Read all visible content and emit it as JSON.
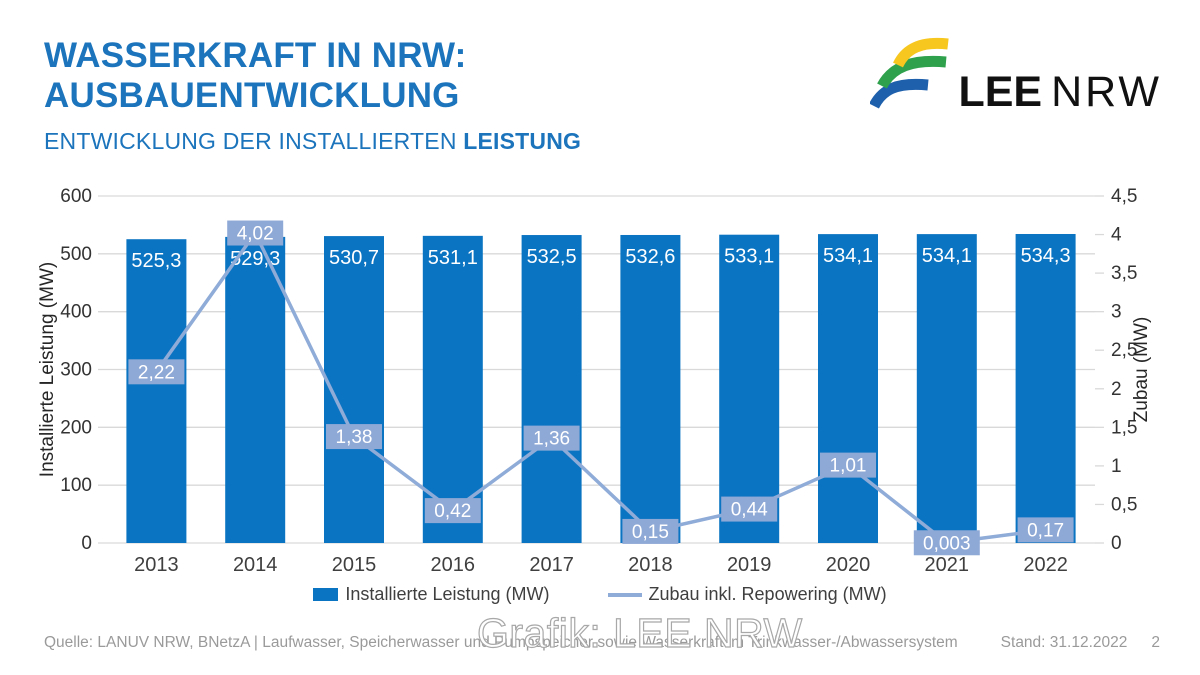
{
  "header": {
    "title_line1": "WASSERKRAFT IN NRW:",
    "title_line2": "AUSBAUENTWICKLUNG",
    "subtitle_prefix": "ENTWICKLUNG DER INSTALLIERTEN ",
    "subtitle_bold": "LEISTUNG"
  },
  "logo": {
    "bold": "LEE",
    "light": "NRW",
    "colors": {
      "yellow": "#f7c71f",
      "green": "#2fa14d",
      "blue": "#1f60ac"
    }
  },
  "chart_data": {
    "type": "bar+line",
    "categories": [
      "2013",
      "2014",
      "2015",
      "2016",
      "2017",
      "2018",
      "2019",
      "2020",
      "2021",
      "2022"
    ],
    "series": [
      {
        "name": "Installierte Leistung (MW)",
        "type": "bar",
        "axis": "left",
        "color": "#0b74c2",
        "values": [
          525.3,
          529.3,
          530.7,
          531.1,
          532.5,
          532.6,
          533.1,
          534.1,
          534.1,
          534.3
        ],
        "labels": [
          "525,3",
          "529,3",
          "530,7",
          "531,1",
          "532,5",
          "532,6",
          "533,1",
          "534,1",
          "534,1",
          "534,3"
        ]
      },
      {
        "name": "Zubau inkl. Repowering (MW)",
        "type": "line",
        "axis": "right",
        "color": "#8fabd7",
        "label_box_color": "#8fa9d6",
        "values": [
          2.22,
          4.02,
          1.38,
          0.42,
          1.36,
          0.15,
          0.44,
          1.01,
          0.003,
          0.17
        ],
        "labels": [
          "2,22",
          "4,02",
          "1,38",
          "0,42",
          "1,36",
          "0,15",
          "0,44",
          "1,01",
          "0,003",
          "0,17"
        ]
      }
    ],
    "left_axis": {
      "label": "Installierte Leistung (MW)",
      "min": 0,
      "max": 600,
      "ticks": [
        "0",
        "100",
        "200",
        "300",
        "400",
        "500",
        "600"
      ]
    },
    "right_axis": {
      "label": "Zubau (MW)",
      "min": 0,
      "max": 4.5,
      "ticks": [
        "0",
        "0,5",
        "1",
        "1,5",
        "2",
        "2,5",
        "3",
        "3,5",
        "4",
        "4,5"
      ]
    },
    "grid": true,
    "grid_color": "#d9d9d9",
    "tick_text_color": "#333333",
    "legend_position": "bottom"
  },
  "footer": {
    "source": "Quelle: LANUV NRW, BNetzA | Laufwasser, Speicherwasser und Pumpspeicher sowie Wasserkraft im Trinkwasser-/Abwassersystem",
    "stand": "Stand: 31.12.2022",
    "page": "2",
    "watermark": "Grafik: LEE NRW"
  }
}
